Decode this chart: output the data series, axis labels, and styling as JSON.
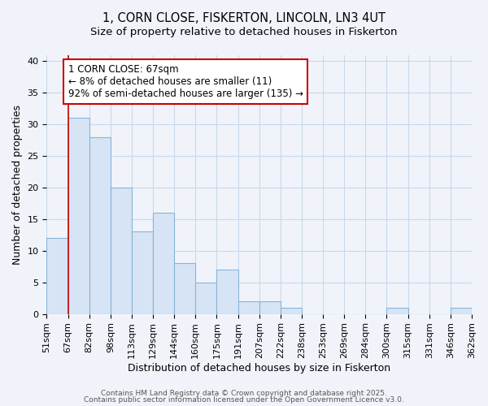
{
  "title": "1, CORN CLOSE, FISKERTON, LINCOLN, LN3 4UT",
  "subtitle": "Size of property relative to detached houses in Fiskerton",
  "xlabel": "Distribution of detached houses by size in Fiskerton",
  "ylabel": "Number of detached properties",
  "bins": [
    "51sqm",
    "67sqm",
    "82sqm",
    "98sqm",
    "113sqm",
    "129sqm",
    "144sqm",
    "160sqm",
    "175sqm",
    "191sqm",
    "207sqm",
    "222sqm",
    "238sqm",
    "253sqm",
    "269sqm",
    "284sqm",
    "300sqm",
    "315sqm",
    "331sqm",
    "346sqm",
    "362sqm"
  ],
  "values": [
    12,
    31,
    28,
    20,
    13,
    16,
    8,
    5,
    7,
    2,
    2,
    1,
    0,
    0,
    0,
    0,
    1,
    0,
    0,
    1,
    0
  ],
  "bar_color": "#d6e4f5",
  "bar_edge_color": "#8ab4d8",
  "background_color": "#f0f4fa",
  "grid_color": "#c8d8ea",
  "annotation_box_color": "#ffffff",
  "annotation_border_color": "#cc0000",
  "vline_color": "#cc0000",
  "vline_x_index": 1,
  "annotation_text_line1": "1 CORN CLOSE: 67sqm",
  "annotation_text_line2": "← 8% of detached houses are smaller (11)",
  "annotation_text_line3": "92% of semi-detached houses are larger (135) →",
  "ylim": [
    0,
    41
  ],
  "yticks": [
    0,
    5,
    10,
    15,
    20,
    25,
    30,
    35,
    40
  ],
  "footer_line1": "Contains HM Land Registry data © Crown copyright and database right 2025.",
  "footer_line2": "Contains public sector information licensed under the Open Government Licence v3.0.",
  "title_fontsize": 10.5,
  "subtitle_fontsize": 9.5,
  "annotation_fontsize": 8.5,
  "tick_fontsize": 8,
  "ylabel_fontsize": 9,
  "xlabel_fontsize": 9,
  "footer_fontsize": 6.5
}
